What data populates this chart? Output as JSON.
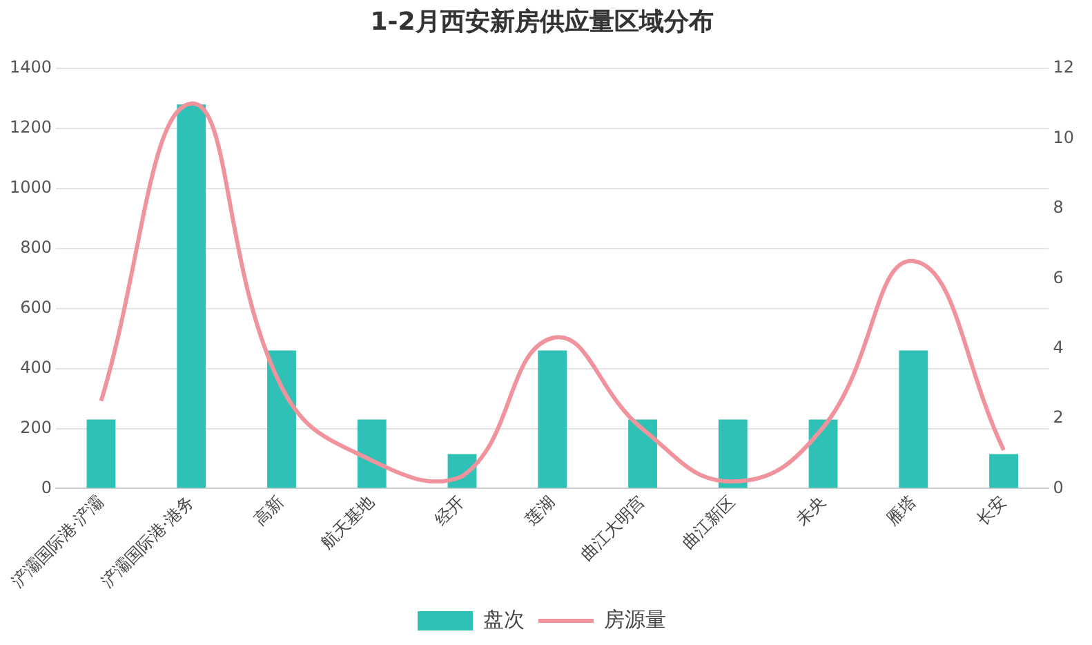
{
  "chart_data": {
    "type": "bar",
    "title": "1-2月西安新房供应量区域分布",
    "categories": [
      "浐灞国际港·浐灞",
      "浐灞国际港·港务",
      "高新",
      "航天基地",
      "经开",
      "莲湖",
      "曲江大明宫",
      "曲江新区",
      "未央",
      "雁塔",
      "长安"
    ],
    "series": [
      {
        "name": "盘次",
        "color": "#2fc1b5",
        "values": [
          230,
          1280,
          460,
          230,
          115,
          460,
          230,
          230,
          230,
          460,
          115
        ]
      },
      {
        "name": "房源量",
        "type": "line",
        "axis": "y2",
        "color": "#f0939c",
        "values": [
          2.5,
          11.0,
          2.9,
          0.8,
          0.35,
          4.3,
          1.7,
          0.2,
          1.75,
          6.5,
          1.1
        ]
      }
    ],
    "ylim": [
      0,
      1400
    ],
    "yticks": [
      0,
      200,
      400,
      600,
      800,
      1000,
      1200,
      1400
    ],
    "y2lim": [
      0,
      12
    ],
    "y2ticks": [
      0,
      2,
      4,
      6,
      8,
      10,
      12
    ],
    "grid": "y",
    "legend": "bottom",
    "marker": "none"
  }
}
